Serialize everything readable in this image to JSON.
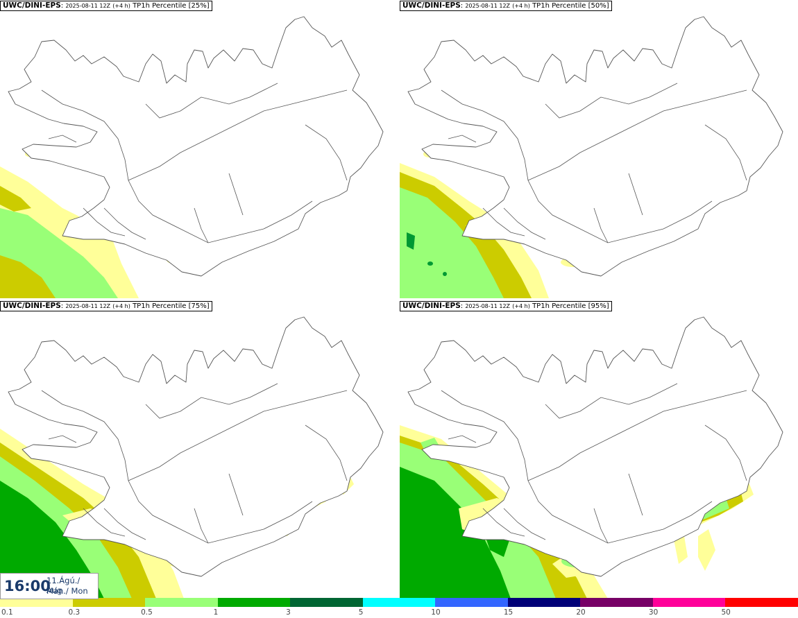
{
  "panels": [
    {
      "model": "UWC/DINI-EPS",
      "run": "2025-08-11 12Z",
      "lead": "(+4 h)",
      "product": "TP1h Percentile [25%]",
      "percentile": 25
    },
    {
      "model": "UWC/DINI-EPS",
      "run": "2025-08-11 12Z",
      "lead": "(+4 h)",
      "product": "TP1h Percentile [50%]",
      "percentile": 50
    },
    {
      "model": "UWC/DINI-EPS",
      "run": "2025-08-11 12Z",
      "lead": "(+4 h)",
      "product": "TP1h Percentile [75%]",
      "percentile": 75
    },
    {
      "model": "UWC/DINI-EPS",
      "run": "2025-08-11 12Z",
      "lead": "(+4 h)",
      "product": "TP1h Percentile [95%]",
      "percentile": 95
    }
  ],
  "valid_time": {
    "time": "16:00",
    "date_line": "11.Ágú./ Aug",
    "day_line": "Mán./ Mon"
  },
  "legend": {
    "labels": [
      "0.1",
      "0.3",
      "0.5",
      "1",
      "3",
      "5",
      "10",
      "15",
      "20",
      "30",
      "50"
    ],
    "colors": [
      "#ffff99",
      "#cccc00",
      "#99ff77",
      "#00aa00",
      "#006633",
      "#00ffff",
      "#3366ff",
      "#000077",
      "#770066",
      "#ff0099",
      "#ff0000"
    ]
  },
  "colors": {
    "light_yellow": "#ffff99",
    "olive": "#cccc00",
    "light_green": "#99ff77",
    "green": "#00aa00",
    "dark_green": "#006633"
  }
}
